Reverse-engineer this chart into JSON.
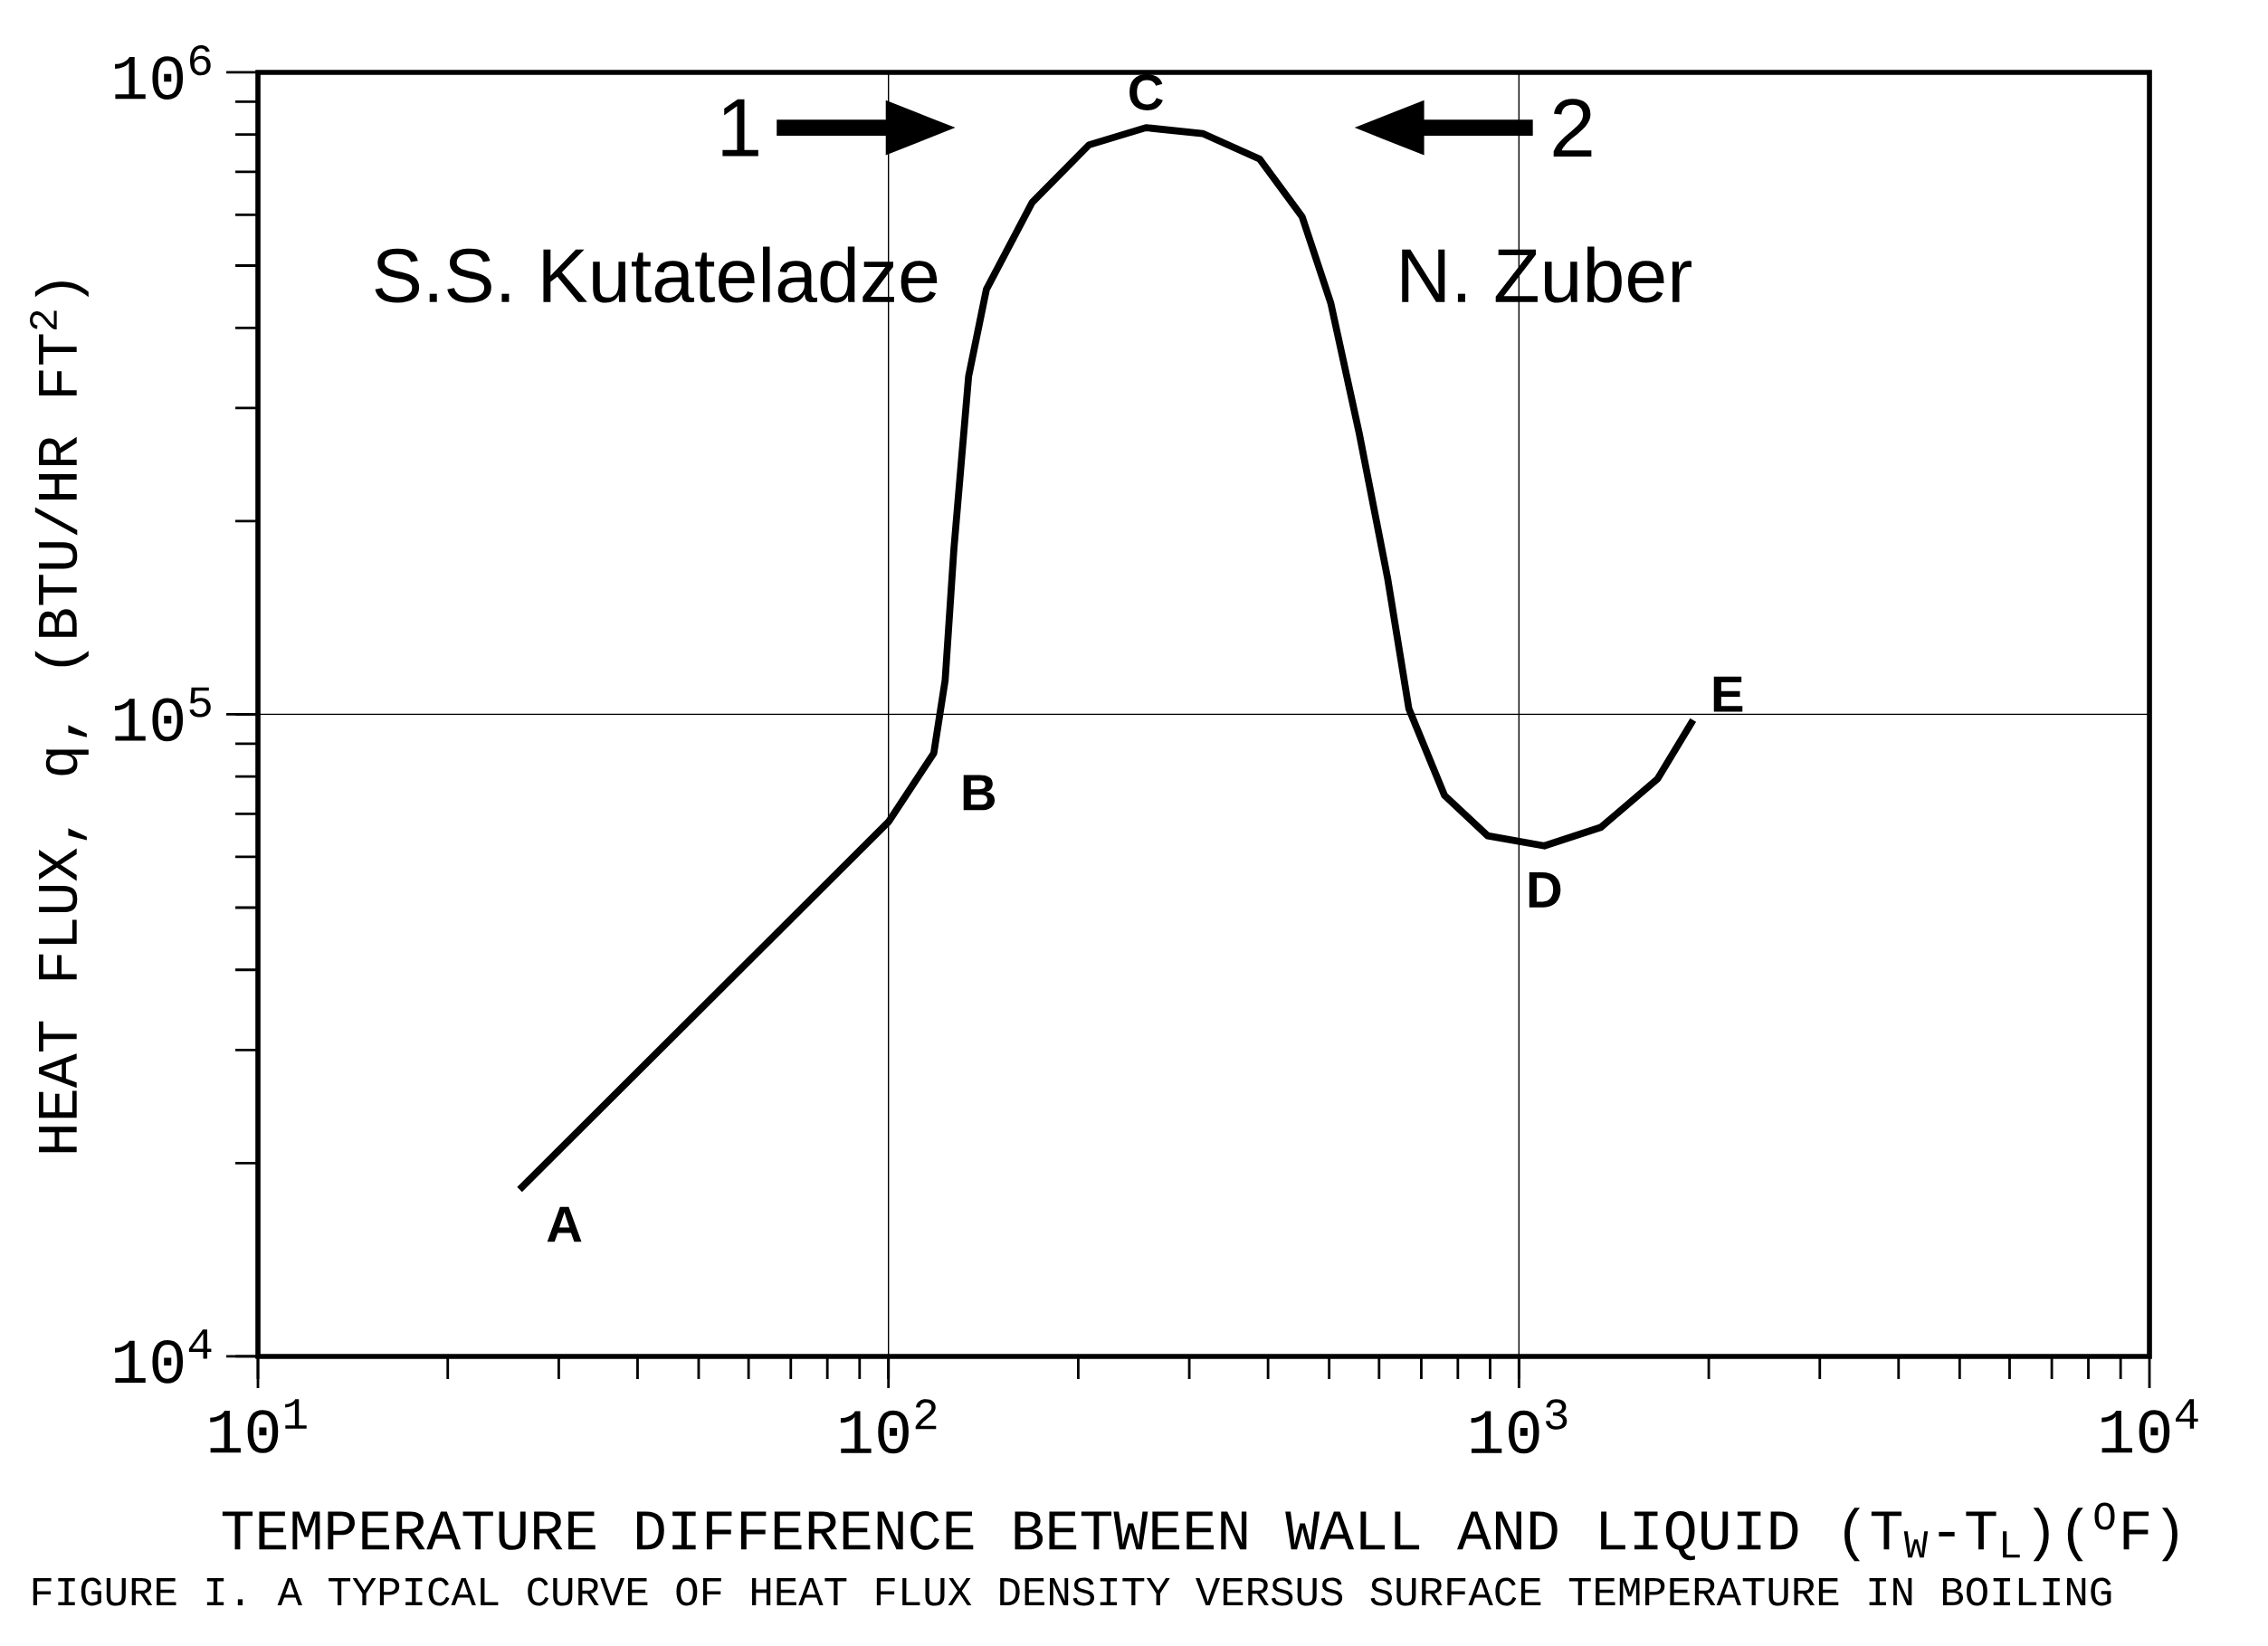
{
  "chart_data": {
    "type": "line",
    "log": "xy",
    "grid": true,
    "marker": "none",
    "line_style": "solid",
    "xlabel": "TEMPERATURE DIFFERENCE BETWEEN WALL AND LIQUID (T$_{W}$-T$_{L}$)($^{O}$F)",
    "ylabel": "HEAT FLUX, q, (BTU/HR FT$^{2}$)",
    "xlim": [
      10,
      10000
    ],
    "ylim": [
      10000,
      1000000
    ],
    "xticks": [
      {
        "value": 10,
        "label": "10$^{1}$"
      },
      {
        "value": 100,
        "label": "10$^{2}$"
      },
      {
        "value": 1000,
        "label": "10$^{3}$"
      },
      {
        "value": 10000,
        "label": "10$^{4}$"
      }
    ],
    "yticks": [
      {
        "value": 10000,
        "label": "10$^{4}$"
      },
      {
        "value": 100000,
        "label": "10$^{5}$"
      },
      {
        "value": 1000000,
        "label": "10$^{6}$"
      }
    ],
    "series": [
      {
        "color": "#000000",
        "x": [
          26,
          100,
          118,
          123,
          127,
          134,
          143,
          169,
          208,
          256,
          315,
          388,
          453,
          503,
          558,
          619,
          669,
          762,
          892,
          1097,
          1349,
          1660,
          1889
        ],
        "values": [
          18200,
          68000,
          87000,
          113000,
          181000,
          336000,
          459000,
          627000,
          771000,
          820000,
          803000,
          733000,
          596000,
          437000,
          274000,
          163000,
          102000,
          74800,
          64700,
          62400,
          66700,
          79400,
          98000
        ]
      }
    ],
    "annotations": [
      {
        "text": "A",
        "x": 26,
        "y": 18200
      },
      {
        "text": "B",
        "x": 118,
        "y": 87000
      },
      {
        "text": "C",
        "x": 256,
        "y": 820000
      },
      {
        "text": "D",
        "x": 1097,
        "y": 62400
      },
      {
        "text": "E",
        "x": 1889,
        "y": 98000
      },
      "1",
      "2",
      "S.S. Kutateladze",
      "N. Zuber",
      "FIGURE I.  A TYPICAL CURVE OF HEAT FLUX DENSITY VERSUS SURFACE TEMPERATURE IN BOILING"
    ]
  }
}
